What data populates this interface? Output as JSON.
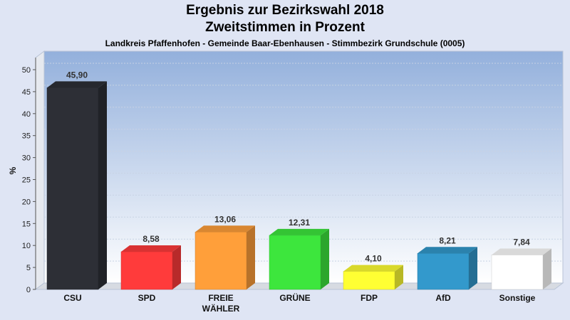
{
  "header": {
    "title": "Ergebnis zur Bezirkswahl 2018",
    "subtitle": "Zweitstimmen in Prozent",
    "location": "Landkreis Pfaffenhofen - Gemeinde Baar-Ebenhausen - Stimmbezirk Grundschule (0005)"
  },
  "chart_data": {
    "type": "bar",
    "title": "Ergebnis zur Bezirkswahl 2018",
    "subtitle": "Zweitstimmen in Prozent",
    "xlabel": "",
    "ylabel": "%",
    "ylim": [
      0,
      50
    ],
    "yticks": [
      "0",
      "5",
      "10",
      "15",
      "20",
      "25",
      "30",
      "35",
      "40",
      "45",
      "50"
    ],
    "grid": true,
    "categories": [
      {
        "line1": "CSU",
        "line2": ""
      },
      {
        "line1": "SPD",
        "line2": ""
      },
      {
        "line1": "FREIE",
        "line2": "WÄHLER"
      },
      {
        "line1": "GRÜNE",
        "line2": ""
      },
      {
        "line1": "FDP",
        "line2": ""
      },
      {
        "line1": "AfD",
        "line2": ""
      },
      {
        "line1": "Sonstige",
        "line2": ""
      }
    ],
    "values": [
      45.9,
      8.58,
      13.06,
      12.31,
      4.1,
      8.21,
      7.84
    ],
    "value_labels": [
      "45,90",
      "8,58",
      "13,06",
      "12,31",
      "4,10",
      "8,21",
      "7,84"
    ],
    "colors": [
      "#2d2f36",
      "#ff3b3b",
      "#ff9f3a",
      "#3de63d",
      "#ffff33",
      "#3399cc",
      "#ffffff"
    ]
  }
}
